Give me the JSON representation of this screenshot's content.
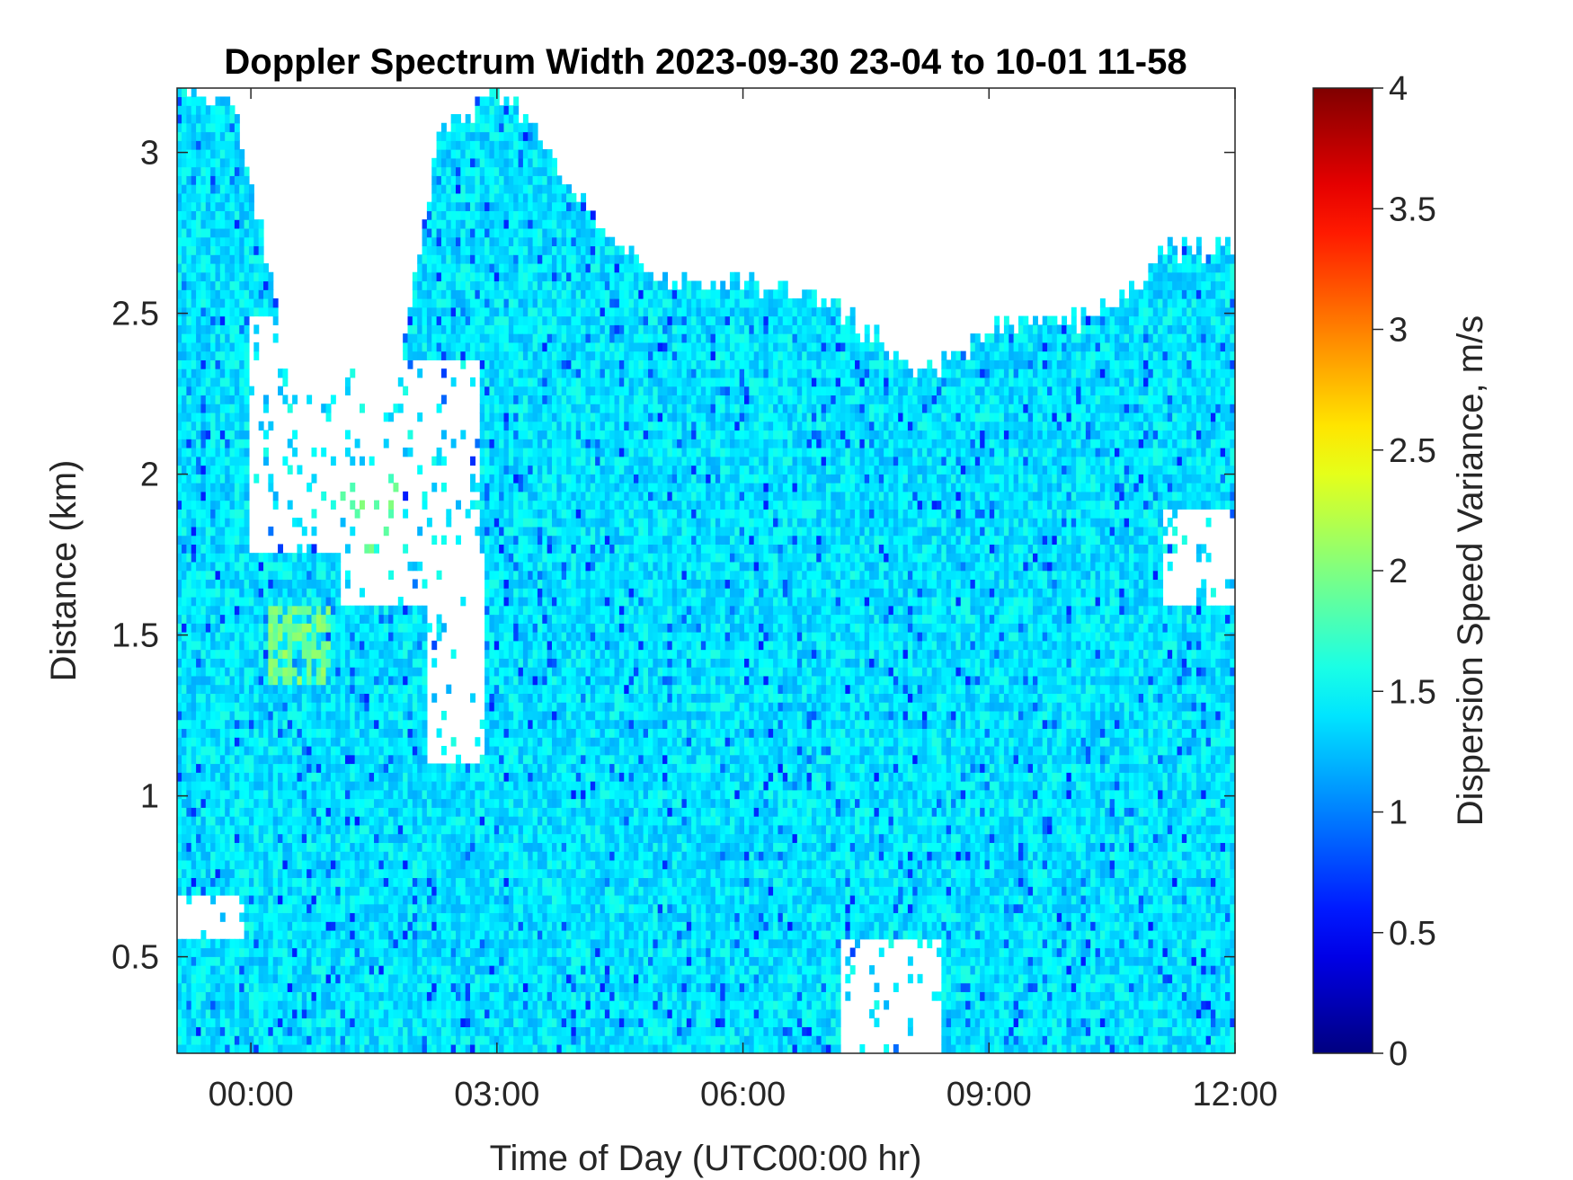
{
  "chart_data": {
    "type": "heatmap",
    "title": "Doppler Spectrum Width 2023-09-30 23-04 to 10-01 11-58",
    "xlabel": "Time of Day (UTC00:00 hr)",
    "ylabel": "Distance (km)",
    "x_unit": "hours from 2023-10-01 00:00 UTC",
    "xlim": [
      -0.9,
      12.0
    ],
    "ylim": [
      0.2,
      3.2
    ],
    "x_ticks": [
      0,
      3,
      6,
      9,
      12
    ],
    "x_tick_labels": [
      "00:00",
      "03:00",
      "06:00",
      "09:00",
      "12:00"
    ],
    "y_ticks": [
      0.5,
      1,
      1.5,
      2,
      2.5,
      3
    ],
    "y_tick_labels": [
      "0.5",
      "1",
      "1.5",
      "2",
      "2.5",
      "3"
    ],
    "colorbar": {
      "label": "Dispersion Speed Variance, m/s",
      "colormap": "jet",
      "clim": [
        0,
        4
      ],
      "ticks": [
        0,
        0.5,
        1,
        1.5,
        2,
        2.5,
        3,
        3.5,
        4
      ],
      "tick_labels": [
        "0",
        "0.5",
        "1",
        "1.5",
        "2",
        "2.5",
        "3",
        "3.5",
        "4"
      ]
    },
    "field": {
      "typical_value": 1.4,
      "value_range": [
        0.6,
        2.2
      ],
      "cloud_top_km": [
        [
          -0.9,
          3.2
        ],
        [
          -0.2,
          3.15
        ],
        [
          0.5,
          2.3
        ],
        [
          1.2,
          2.3
        ],
        [
          1.8,
          2.3
        ],
        [
          2.3,
          3.05
        ],
        [
          3.0,
          3.2
        ],
        [
          3.5,
          3.05
        ],
        [
          4.0,
          2.85
        ],
        [
          5.0,
          2.6
        ],
        [
          6.0,
          2.6
        ],
        [
          7.0,
          2.55
        ],
        [
          8.2,
          2.3
        ],
        [
          9.0,
          2.45
        ],
        [
          10.5,
          2.5
        ],
        [
          11.2,
          2.7
        ],
        [
          12.0,
          2.7
        ]
      ],
      "gaps": [
        {
          "t": [
            0.0,
            1.1
          ],
          "km": [
            1.75,
            2.5
          ]
        },
        {
          "t": [
            1.1,
            2.8
          ],
          "km": [
            1.6,
            2.35
          ]
        },
        {
          "t": [
            2.15,
            2.85
          ],
          "km": [
            1.1,
            1.75
          ]
        },
        {
          "t": [
            7.2,
            8.4
          ],
          "km": [
            0.2,
            0.55
          ]
        },
        {
          "t": [
            11.1,
            12.0
          ],
          "km": [
            1.6,
            1.9
          ]
        },
        {
          "t": [
            -0.9,
            -0.1
          ],
          "km": [
            0.55,
            0.7
          ]
        }
      ],
      "high_value_patches": [
        {
          "t": [
            0.2,
            1.0
          ],
          "km": [
            1.35,
            1.6
          ],
          "value": 2.0
        },
        {
          "t": [
            1.1,
            1.8
          ],
          "km": [
            1.7,
            2.0
          ],
          "value": 1.9
        }
      ]
    }
  }
}
